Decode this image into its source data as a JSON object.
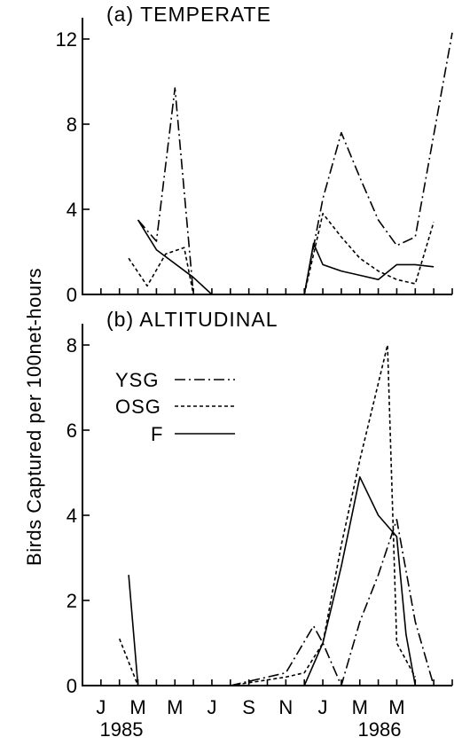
{
  "ylabel": "Birds Captured per 100net-hours",
  "years": [
    "1985",
    "1986"
  ],
  "month_labels": [
    "J",
    "M",
    "M",
    "J",
    "S",
    "N",
    "J",
    "M",
    "M"
  ],
  "legend": [
    {
      "label": "YSG",
      "series": "YSG"
    },
    {
      "label": "OSG",
      "series": "OSG"
    },
    {
      "label": "F",
      "series": "F"
    }
  ],
  "chart_data": [
    {
      "type": "line",
      "title": "(a) TEMPERATE",
      "ylim": [
        0,
        13
      ],
      "yticks": [
        0,
        4,
        8,
        12
      ],
      "xlim": [
        -1,
        19
      ],
      "x_month_index_note": "x = months since Jan 1985",
      "series": [
        {
          "name": "YSG",
          "dash": "dashdot",
          "x": [
            2,
            3,
            4,
            5,
            10,
            11,
            12,
            13,
            14,
            15,
            16,
            17,
            19
          ],
          "y": [
            3.5,
            2.5,
            9.7,
            0,
            0,
            0,
            4.5,
            7.6,
            5.5,
            3.5,
            2.3,
            2.7,
            12.3
          ]
        },
        {
          "name": "OSG",
          "dash": "dashed",
          "x": [
            1.5,
            2.5,
            3.5,
            4.5,
            5,
            10,
            11,
            12,
            13,
            14,
            15,
            16,
            17,
            18
          ],
          "y": [
            1.7,
            0.4,
            1.9,
            2.2,
            0,
            0,
            0,
            3.8,
            2.7,
            1.7,
            1.1,
            0.7,
            0.5,
            3.4
          ]
        },
        {
          "name": "F",
          "dash": "solid",
          "x": [
            2,
            3,
            5,
            6,
            10,
            11,
            11.5,
            12,
            13,
            14,
            15,
            16,
            17,
            18
          ],
          "y": [
            3.5,
            2.1,
            0.8,
            0,
            0,
            0,
            2.4,
            1.4,
            1.1,
            0.9,
            0.7,
            1.4,
            1.4,
            1.3
          ]
        }
      ]
    },
    {
      "type": "line",
      "title": "(b) ALTITUDINAL",
      "ylim": [
        0,
        8.5
      ],
      "yticks": [
        0,
        2,
        4,
        6,
        8
      ],
      "xlim": [
        -1,
        19
      ],
      "series": [
        {
          "name": "YSG",
          "dash": "dashdot",
          "x": [
            7,
            10,
            11.5,
            12,
            13,
            14,
            15,
            16,
            17,
            18
          ],
          "y": [
            0,
            0.3,
            1.4,
            1.0,
            0,
            1.5,
            2.6,
            3.9,
            1.5,
            0
          ]
        },
        {
          "name": "OSG",
          "dash": "dashed",
          "x": [
            1,
            2,
            7,
            10,
            11,
            12,
            13,
            14,
            15.5,
            16,
            17
          ],
          "y": [
            1.1,
            0,
            0,
            0.2,
            0.3,
            1.0,
            3.3,
            5.3,
            8.0,
            1.0,
            0.2
          ]
        },
        {
          "name": "F",
          "dash": "solid",
          "x": [
            1.5,
            2,
            7,
            11,
            12,
            13,
            14,
            15,
            16,
            16.5,
            17
          ],
          "y": [
            2.6,
            0,
            0,
            0,
            1.0,
            2.8,
            4.9,
            4.0,
            3.5,
            1.2,
            0
          ]
        }
      ]
    }
  ]
}
